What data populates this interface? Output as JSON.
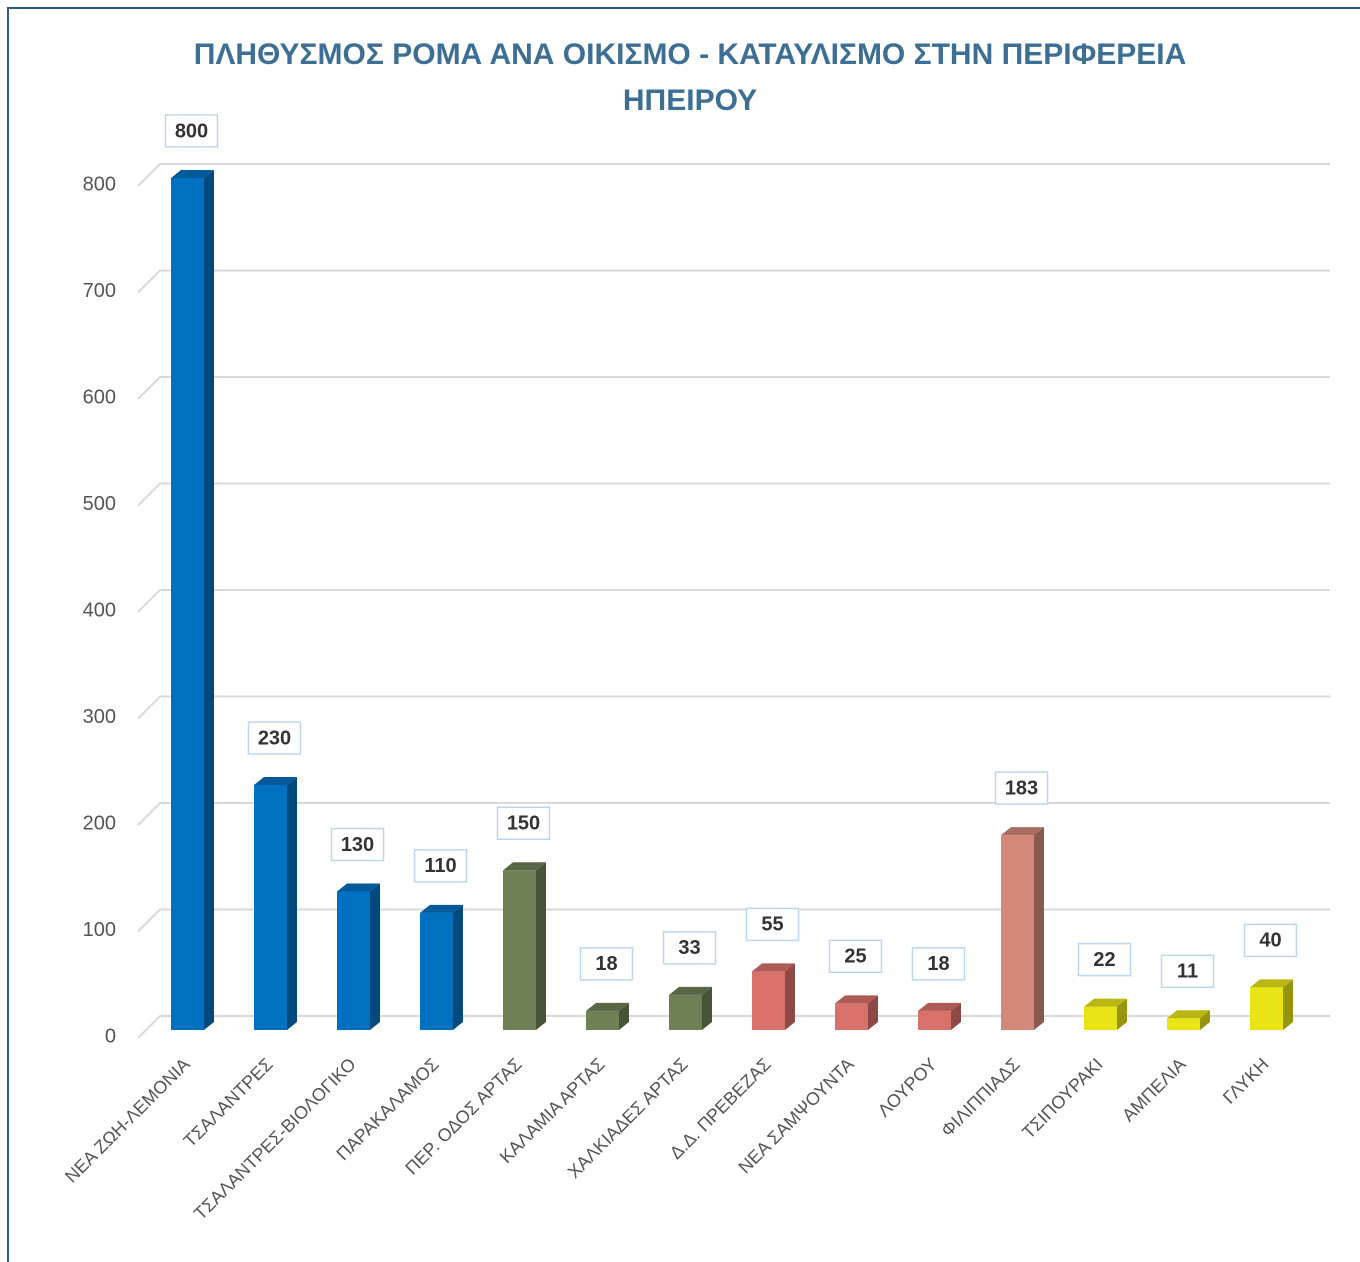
{
  "chart_data": {
    "type": "bar3d",
    "title": "ΠΛΗΘΥΣΜΟΣ ΡΟΜΑ ΑΝΑ ΟΙΚΙΣΜΟ - ΚΑΤΑΥΛΙΣΜΟ ΣΤΗΝ ΠΕΡΙΦΕΡΕΙΑ ΗΠΕΙΡΟΥ",
    "categories": [
      "ΝΕΑ ΖΩΗ-ΛΕΜΟΝΙΑ",
      "ΤΣΑΛΑΝΤΡΕΣ",
      "ΤΣΑΛΑΝΤΡΕΣ-ΒΙΟΛΟΓΙΚΟ",
      "ΠΑΡΑΚΑΛΑΜΟΣ",
      "ΠΕΡ. ΟΔΟΣ ΑΡΤΑΣ",
      "ΚΑΛΑΜΙΑ ΑΡΤΑΣ",
      "ΧΑΛΚΙΑΔΕΣ ΑΡΤΑΣ",
      "Δ.Δ. ΠΡΕΒΕΖΑΣ",
      "ΝΕΑ ΣΑΜΨΟΥΝΤΑ",
      "ΛΟΥΡΟΥ",
      "ΦΙΛΙΠΠΙΑΔΣ",
      "ΤΣΙΠΟΥΡΑΚΙ",
      "ΑΜΠΕΛΙΑ",
      "ΓΛΥΚΗ"
    ],
    "values": [
      800,
      230,
      130,
      110,
      150,
      18,
      33,
      55,
      25,
      18,
      183,
      22,
      11,
      40
    ],
    "colors": [
      "#0070c0",
      "#0070c0",
      "#0070c0",
      "#0070c0",
      "#6f7f56",
      "#6f7f56",
      "#6f7f56",
      "#d9716b",
      "#d9716b",
      "#d9716b",
      "#d4887a",
      "#e8e416",
      "#e8e416",
      "#e8e416"
    ],
    "ylim": [
      0,
      800
    ],
    "yticks": [
      0,
      100,
      200,
      300,
      400,
      500,
      600,
      700,
      800
    ],
    "grid": true
  }
}
